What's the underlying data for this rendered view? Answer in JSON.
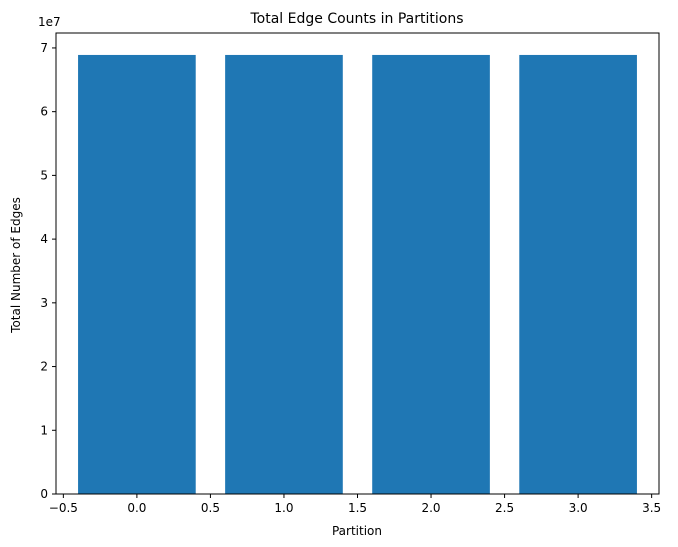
{
  "chart_data": {
    "type": "bar",
    "title": "Total Edge Counts in Partitions",
    "xlabel": "Partition",
    "ylabel": "Total Number of Edges",
    "y_scale_label": "1e7",
    "x": [
      0,
      1,
      2,
      3
    ],
    "values": [
      68900000,
      68900000,
      68900000,
      68900000
    ],
    "bar_width": 0.8,
    "xlim": [
      -0.55,
      3.55
    ],
    "ylim": [
      0,
      72345000
    ],
    "xticks": [
      -0.5,
      0.0,
      0.5,
      1.0,
      1.5,
      2.0,
      2.5,
      3.0,
      3.5
    ],
    "xtick_labels": [
      "−0.5",
      "0.0",
      "0.5",
      "1.0",
      "1.5",
      "2.0",
      "2.5",
      "3.0",
      "3.5"
    ],
    "yticks": [
      0,
      10000000,
      20000000,
      30000000,
      40000000,
      50000000,
      60000000,
      70000000
    ],
    "ytick_labels": [
      "0",
      "1",
      "2",
      "3",
      "4",
      "5",
      "6",
      "7"
    ],
    "bar_color": "#1f77b4",
    "grid": false,
    "legend": "none"
  }
}
